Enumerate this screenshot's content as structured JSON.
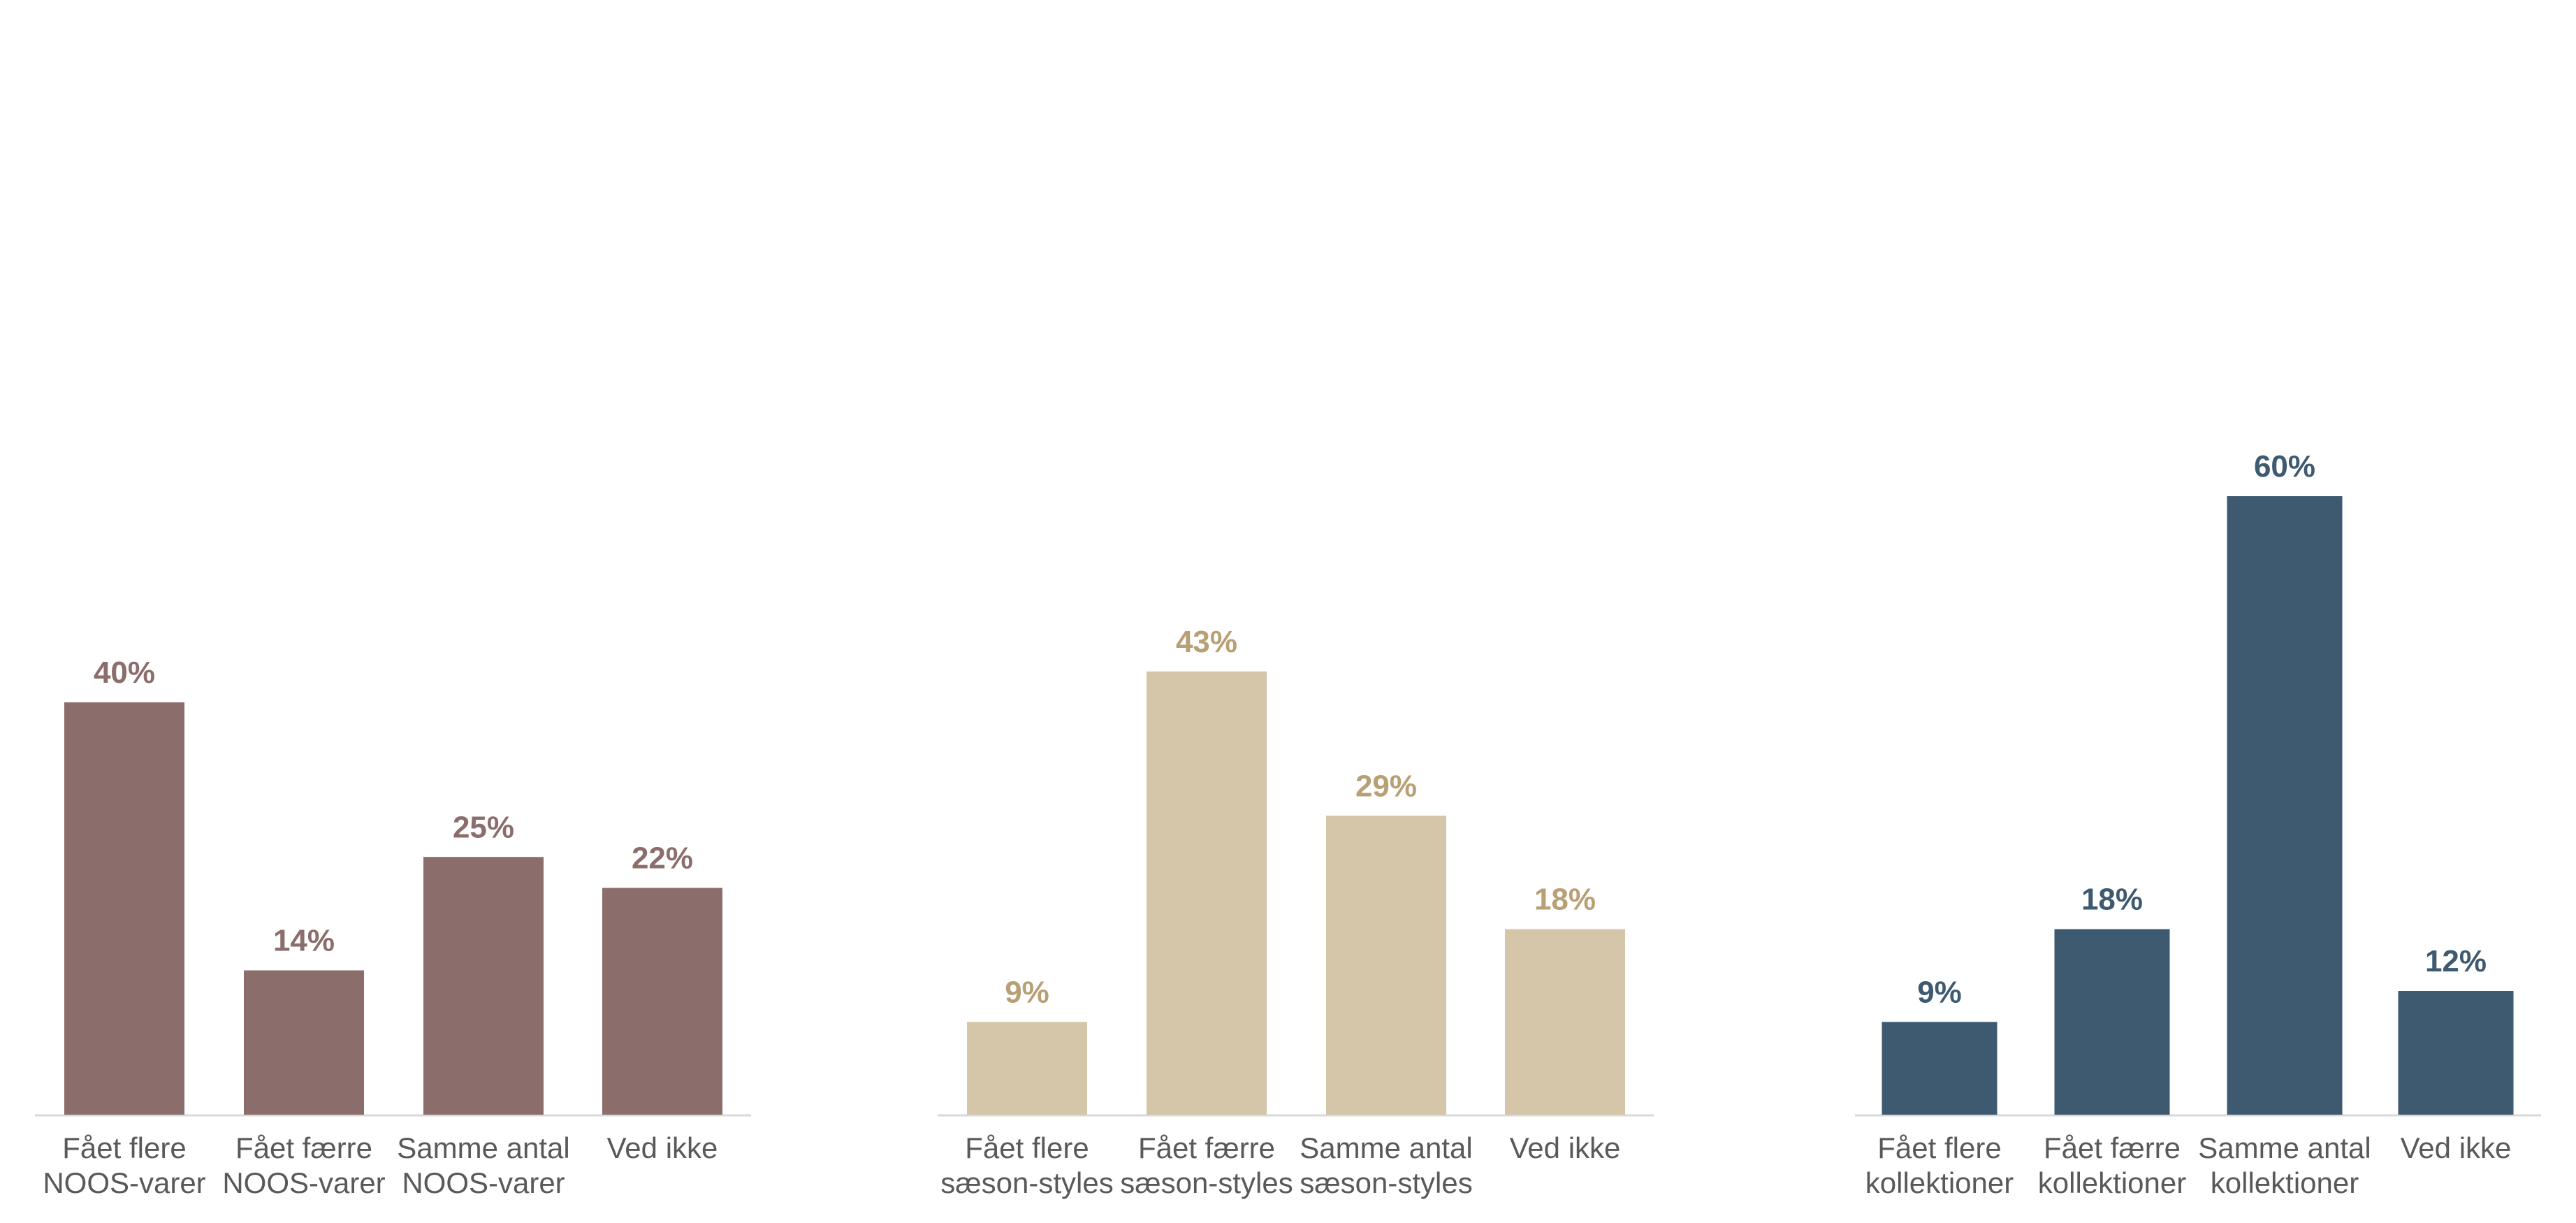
{
  "chart_data": [
    {
      "type": "bar",
      "categories": [
        [
          "Fået flere",
          "NOOS-varer"
        ],
        [
          "Fået færre",
          "NOOS-varer"
        ],
        [
          "Samme antal",
          "NOOS-varer"
        ],
        [
          "Ved ikke"
        ]
      ],
      "values": [
        40,
        14,
        25,
        22
      ],
      "value_labels": [
        "40%",
        "14%",
        "25%",
        "22%"
      ],
      "ylim": [
        0,
        65
      ],
      "bar_color": "#8b6d6b",
      "label_color": "#8b6d6b",
      "grid": false
    },
    {
      "type": "bar",
      "categories": [
        [
          "Fået flere",
          "sæson-styles"
        ],
        [
          "Fået færre",
          "sæson-styles"
        ],
        [
          "Samme antal",
          "sæson-styles"
        ],
        [
          "Ved ikke"
        ]
      ],
      "values": [
        9,
        43,
        29,
        18
      ],
      "value_labels": [
        "9%",
        "43%",
        "29%",
        "18%"
      ],
      "ylim": [
        0,
        65
      ],
      "bar_color": "#d5c6aa",
      "label_color": "#b89f74",
      "grid": false
    },
    {
      "type": "bar",
      "categories": [
        [
          "Fået flere",
          "kollektioner"
        ],
        [
          "Fået færre",
          "kollektioner"
        ],
        [
          "Samme antal",
          "kollektioner"
        ],
        [
          "Ved ikke"
        ]
      ],
      "values": [
        9,
        18,
        60,
        12
      ],
      "value_labels": [
        "9%",
        "18%",
        "60%",
        "12%"
      ],
      "ylim": [
        0,
        65
      ],
      "bar_color": "#3e5a70",
      "label_color": "#3e5a70",
      "grid": false
    }
  ],
  "axis_line_color": "#d9d9d9"
}
